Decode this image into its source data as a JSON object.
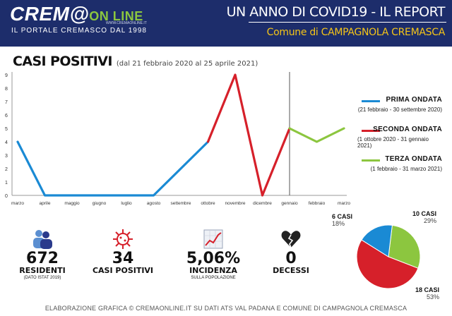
{
  "header": {
    "logo_main": "CREM@",
    "logo_on": "ON LINE",
    "logo_url": "WWW.CREMAONLINE.IT",
    "logo_tagline": "IL PORTALE CREMASCO DAL 1998",
    "title": "UN ANNO DI COVID19 - IL  REPORT",
    "subtitle": "Comune di CAMPAGNOLA CREMASCA"
  },
  "colors": {
    "header_bg": "#1d2d6b",
    "wave1": "#1a8ad4",
    "wave2": "#d6202a",
    "wave3": "#8cc63f"
  },
  "chart_data": [
    {
      "type": "line",
      "title": "CASI POSITIVI",
      "subtitle": "(dal 21 febbraio 2020 al 25 aprile 2021)",
      "categories": [
        "marzo",
        "aprile",
        "maggio",
        "giugno",
        "luglio",
        "agosto",
        "settembre",
        "ottobre",
        "novembre",
        "dicembre",
        "gennaio",
        "febbraio",
        "marzo"
      ],
      "ylim": [
        0,
        9
      ],
      "yticks": [
        "0",
        "1",
        "2",
        "3",
        "4",
        "5",
        "6",
        "7",
        "8",
        "9"
      ],
      "grid": false,
      "legend": "right",
      "series": [
        {
          "name": "PRIMA ONDATA",
          "range": "(21 febbraio - 30 settembre 2020)",
          "color": "#1a8ad4",
          "x": [
            0,
            1,
            2,
            3,
            4,
            5,
            6,
            7
          ],
          "values": [
            4,
            0,
            0,
            0,
            0,
            0,
            2,
            4
          ]
        },
        {
          "name": "SECONDA ONDATA",
          "range": "(1 ottobre 2020 - 31 gennaio 2021)",
          "color": "#d6202a",
          "x": [
            7,
            8,
            9,
            10
          ],
          "values": [
            4,
            9,
            0,
            5
          ]
        },
        {
          "name": "TERZA ONDATA",
          "range": "(1 febbraio - 31 marzo 2021)",
          "color": "#8cc63f",
          "x": [
            10,
            11,
            12
          ],
          "values": [
            5,
            4,
            5
          ]
        }
      ],
      "marker_line_at": 10
    },
    {
      "type": "pie",
      "categories": [
        "10 CASI",
        "18 CASI",
        "6 CASI"
      ],
      "values": [
        29,
        53,
        18
      ],
      "labels_percent": [
        "29%",
        "53%",
        "18%"
      ],
      "colors": [
        "#8cc63f",
        "#d6202a",
        "#1a8ad4"
      ]
    }
  ],
  "stats": [
    {
      "icon": "people-icon",
      "value": "672",
      "label": "RESIDENTI",
      "note": "(DATO ISTAT 2019)"
    },
    {
      "icon": "virus-icon",
      "value": "34",
      "label": "CASI POSITIVI",
      "note": ""
    },
    {
      "icon": "trend-chart-icon",
      "value": "5,06%",
      "label": "INCIDENZA",
      "note": "SULLA POPOLAZIONE"
    },
    {
      "icon": "broken-heart-icon",
      "value": "0",
      "label": "DECESSI",
      "note": ""
    }
  ],
  "footer": "ELABORAZIONE GRAFICA © CREMAONLINE.IT SU DATI ATS VAL PADANA E COMUNE DI CAMPAGNOLA CREMASCA"
}
